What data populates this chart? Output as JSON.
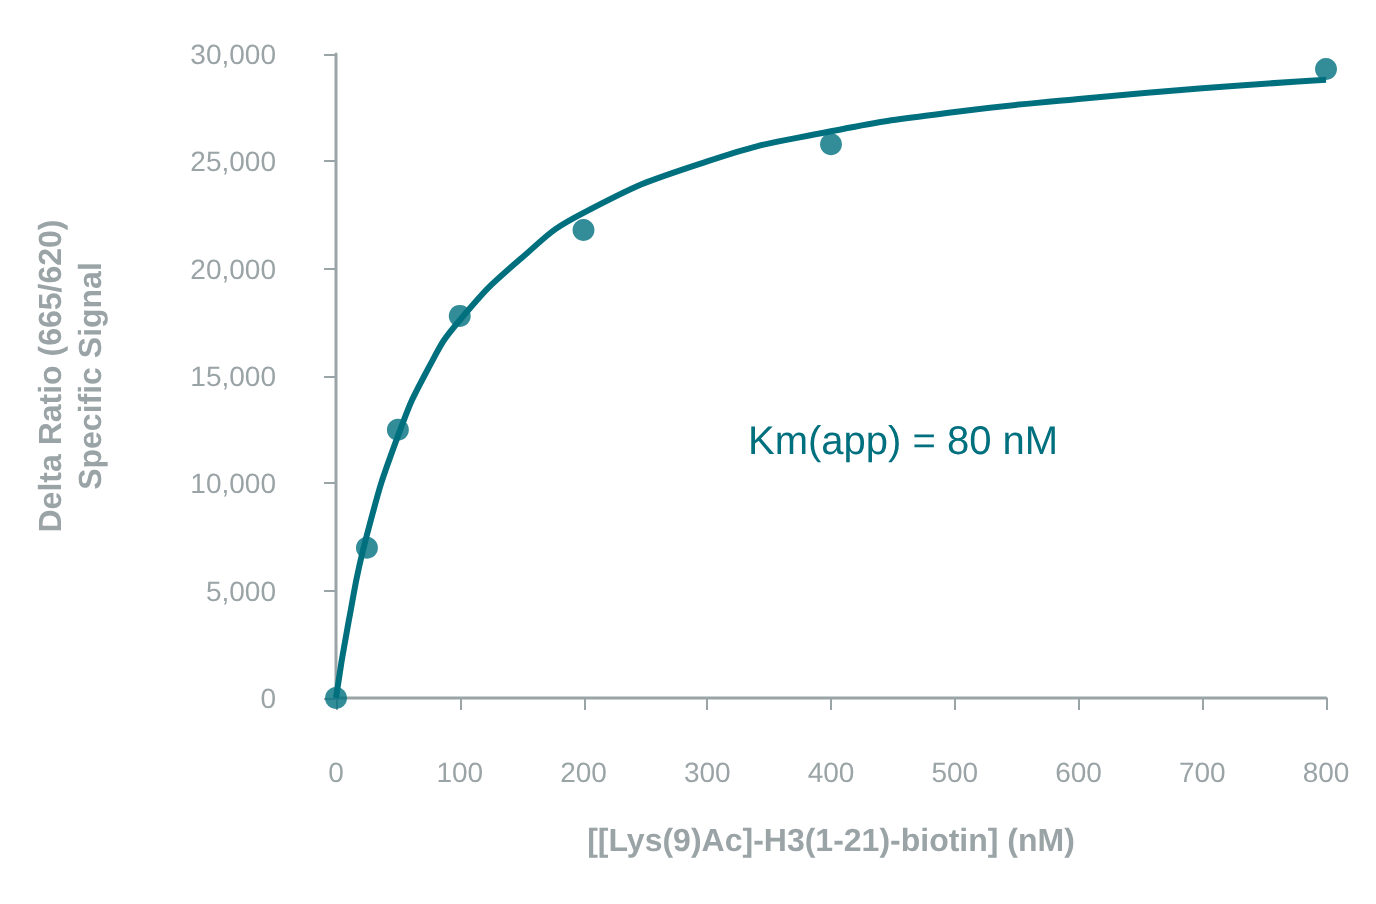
{
  "chart_data": {
    "type": "scatter",
    "xlabel": "[[Lys(9)Ac]-H3(1-21)-biotin] (nM)",
    "ylabel": "Delta Ratio (665/620)\nSpecific Signal",
    "annotations": [
      "Km(app) = 80 nM"
    ],
    "series": [
      {
        "marker": "circle",
        "color": "#00707f",
        "x": [
          0,
          25,
          50,
          100,
          200,
          400,
          800
        ],
        "values": [
          0,
          7000,
          12500,
          17800,
          21800,
          25800,
          29300
        ]
      },
      {
        "type": "line",
        "marker": "none",
        "color": "#00707f",
        "x": [
          0,
          10,
          25,
          50,
          75,
          100,
          150,
          200,
          300,
          400,
          500,
          600,
          700,
          800
        ],
        "values": [
          0,
          3500,
          7600,
          12200,
          15400,
          17600,
          20500,
          22600,
          25000,
          26400,
          27300,
          27900,
          28400,
          28800
        ]
      }
    ],
    "xlim": [
      0,
      800
    ],
    "xticks": [
      0,
      100,
      200,
      300,
      400,
      500,
      600,
      700,
      800
    ],
    "ylim": [
      0,
      30000
    ],
    "yticks": [
      0,
      {
        "value": 5000,
        "label": "5,000"
      },
      {
        "value": 10000,
        "label": "10,000"
      },
      {
        "value": 15000,
        "label": "15,000"
      },
      {
        "value": 20000,
        "label": "20,000"
      },
      {
        "value": 25000,
        "label": "25,000"
      },
      {
        "value": 30000,
        "label": "30,000"
      }
    ],
    "grid": false
  }
}
